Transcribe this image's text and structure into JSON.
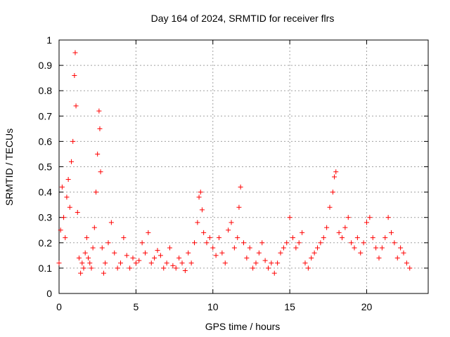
{
  "chart_data": {
    "type": "scatter",
    "title": "Day 164 of 2024, SRMTID for receiver flrs",
    "xlabel": "GPS time / hours",
    "ylabel": "SRMTID / TECUs",
    "xlim": [
      0,
      24
    ],
    "ylim": [
      0,
      1
    ],
    "xticks": [
      0,
      5,
      10,
      15,
      20
    ],
    "xtick_labels": [
      "0",
      "5",
      "10",
      "15",
      "20"
    ],
    "yticks": [
      0,
      0.1,
      0.2,
      0.3,
      0.4,
      0.5,
      0.6,
      0.7,
      0.8,
      0.9,
      1
    ],
    "ytick_labels": [
      "0",
      "0.1",
      "0.2",
      "0.3",
      "0.4",
      "0.5",
      "0.6",
      "0.7",
      "0.8",
      "0.9",
      "1"
    ],
    "grid": true,
    "marker": "+",
    "series": [
      {
        "name": "SRMTID",
        "color": "#ff0000",
        "x": [
          0.0,
          0.1,
          0.2,
          0.3,
          0.4,
          0.5,
          0.6,
          0.7,
          0.8,
          0.9,
          1.0,
          1.05,
          1.1,
          1.2,
          1.3,
          1.4,
          1.5,
          1.6,
          1.7,
          1.8,
          1.9,
          2.0,
          2.1,
          2.2,
          2.3,
          2.4,
          2.5,
          2.6,
          2.65,
          2.7,
          2.8,
          2.9,
          3.0,
          3.2,
          3.4,
          3.6,
          3.8,
          4.0,
          4.2,
          4.4,
          4.6,
          4.8,
          5.0,
          5.2,
          5.4,
          5.6,
          5.8,
          6.0,
          6.2,
          6.4,
          6.6,
          6.8,
          7.0,
          7.2,
          7.4,
          7.6,
          7.8,
          8.0,
          8.2,
          8.4,
          8.6,
          8.8,
          9.0,
          9.1,
          9.2,
          9.3,
          9.4,
          9.6,
          9.8,
          10.0,
          10.2,
          10.4,
          10.6,
          10.8,
          11.0,
          11.2,
          11.4,
          11.6,
          11.7,
          11.8,
          12.0,
          12.2,
          12.4,
          12.6,
          12.8,
          13.0,
          13.2,
          13.4,
          13.6,
          13.8,
          14.0,
          14.2,
          14.4,
          14.6,
          14.8,
          15.0,
          15.2,
          15.4,
          15.6,
          15.8,
          16.0,
          16.2,
          16.4,
          16.6,
          16.8,
          17.0,
          17.2,
          17.4,
          17.6,
          17.8,
          17.9,
          18.0,
          18.2,
          18.4,
          18.6,
          18.8,
          19.0,
          19.2,
          19.4,
          19.6,
          19.8,
          20.0,
          20.2,
          20.4,
          20.6,
          20.8,
          21.0,
          21.2,
          21.4,
          21.6,
          21.8,
          22.0,
          22.2,
          22.4,
          22.6,
          22.8
        ],
        "y": [
          0.12,
          0.25,
          0.42,
          0.3,
          0.22,
          0.38,
          0.45,
          0.34,
          0.52,
          0.6,
          0.86,
          0.95,
          0.74,
          0.32,
          0.14,
          0.08,
          0.12,
          0.1,
          0.16,
          0.22,
          0.14,
          0.12,
          0.1,
          0.18,
          0.26,
          0.4,
          0.55,
          0.72,
          0.65,
          0.48,
          0.18,
          0.08,
          0.12,
          0.2,
          0.28,
          0.16,
          0.1,
          0.12,
          0.22,
          0.15,
          0.1,
          0.14,
          0.12,
          0.13,
          0.2,
          0.16,
          0.24,
          0.12,
          0.14,
          0.17,
          0.15,
          0.1,
          0.12,
          0.18,
          0.11,
          0.1,
          0.14,
          0.12,
          0.09,
          0.16,
          0.12,
          0.2,
          0.28,
          0.38,
          0.4,
          0.33,
          0.24,
          0.2,
          0.22,
          0.18,
          0.15,
          0.22,
          0.16,
          0.12,
          0.25,
          0.28,
          0.18,
          0.22,
          0.34,
          0.42,
          0.2,
          0.14,
          0.18,
          0.1,
          0.12,
          0.16,
          0.2,
          0.13,
          0.1,
          0.12,
          0.08,
          0.12,
          0.16,
          0.18,
          0.2,
          0.3,
          0.22,
          0.18,
          0.2,
          0.24,
          0.12,
          0.1,
          0.14,
          0.16,
          0.18,
          0.2,
          0.22,
          0.26,
          0.34,
          0.4,
          0.46,
          0.48,
          0.24,
          0.22,
          0.26,
          0.3,
          0.2,
          0.18,
          0.22,
          0.16,
          0.2,
          0.28,
          0.3,
          0.22,
          0.18,
          0.14,
          0.18,
          0.22,
          0.3,
          0.24,
          0.2,
          0.14,
          0.18,
          0.16,
          0.12,
          0.1
        ]
      }
    ]
  }
}
